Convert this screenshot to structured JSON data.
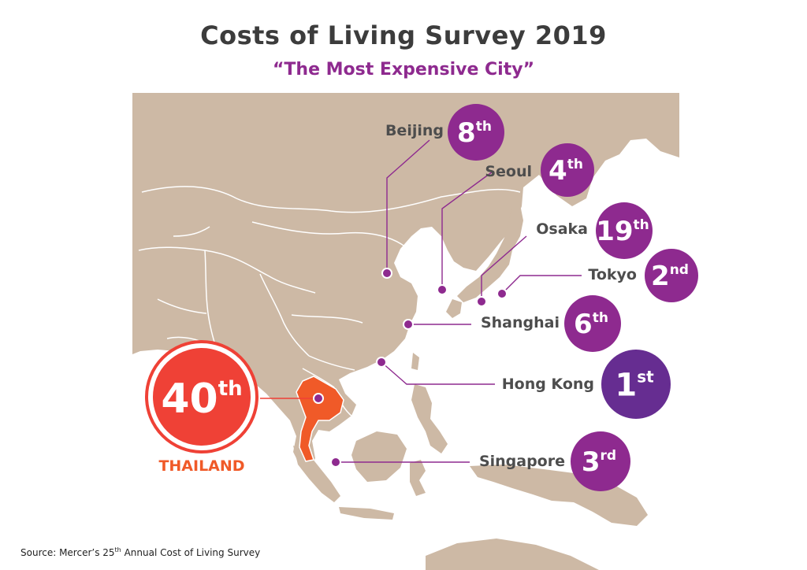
{
  "header": {
    "title": "Costs of Living Survey 2019",
    "subtitle": "“The Most Expensive City”"
  },
  "colors": {
    "land": "#cdb9a5",
    "border": "#ffffff",
    "sea": "#ffffff",
    "city_purple": "#8e2a8f",
    "rank1_purple": "#662d91",
    "thailand": "#f05a28",
    "thailand_ring": "#ef4136",
    "text_dark": "#4d4d4d"
  },
  "cities": [
    {
      "name": "Beijing",
      "rank_num": "8",
      "rank_suffix": "th"
    },
    {
      "name": "Seoul",
      "rank_num": "4",
      "rank_suffix": "th"
    },
    {
      "name": "Osaka",
      "rank_num": "19",
      "rank_suffix": "th"
    },
    {
      "name": "Tokyo",
      "rank_num": "2",
      "rank_suffix": "nd"
    },
    {
      "name": "Shanghai",
      "rank_num": "6",
      "rank_suffix": "th"
    },
    {
      "name": "Hong Kong",
      "rank_num": "1",
      "rank_suffix": "st"
    },
    {
      "name": "Singapore",
      "rank_num": "3",
      "rank_suffix": "rd"
    }
  ],
  "thailand": {
    "rank_num": "40",
    "rank_suffix": "th",
    "label": "THAILAND"
  },
  "source": {
    "prefix": "Source: Mercer’s 25",
    "sup": "th",
    "suffix": " Annual Cost of Living Survey"
  }
}
